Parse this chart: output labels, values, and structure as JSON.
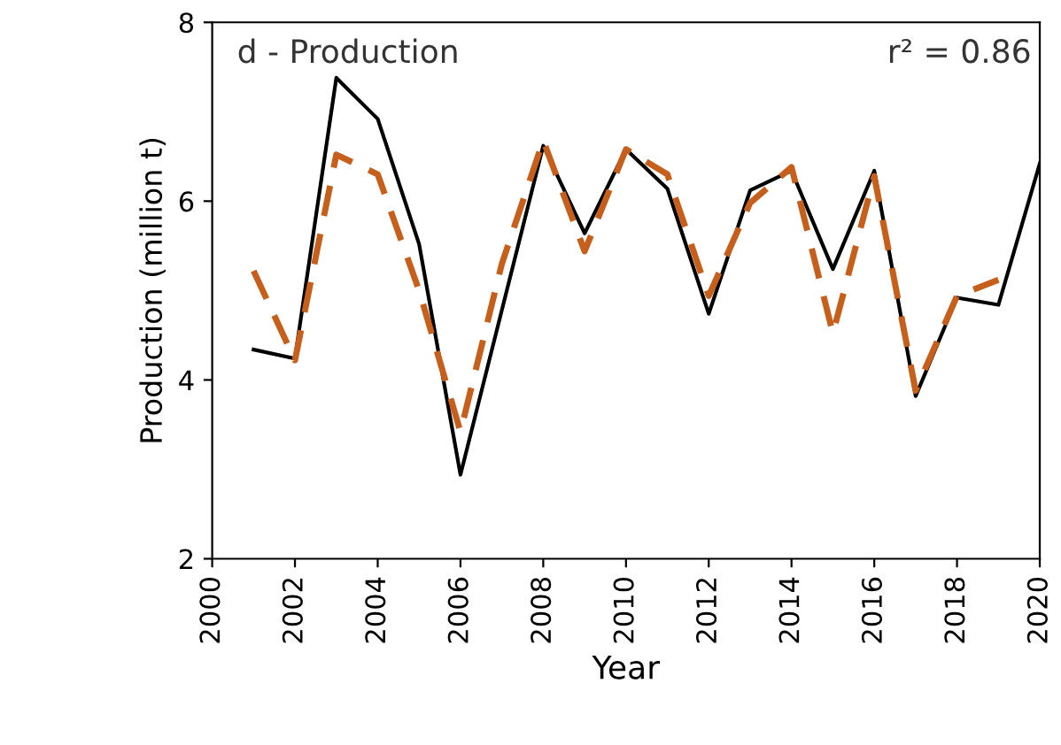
{
  "chart_data": {
    "type": "line",
    "title": "d - Production",
    "xlabel": "Year",
    "ylabel": "Production (million t)",
    "annotations": [
      "r² = 0.86"
    ],
    "xlim": [
      2000,
      2020
    ],
    "xticks": [
      2000,
      2002,
      2004,
      2006,
      2008,
      2010,
      2012,
      2014,
      2016,
      2018,
      2020
    ],
    "ylim": [
      2,
      8
    ],
    "yticks": [
      2,
      4,
      6,
      8
    ],
    "grid": false,
    "legend": false,
    "series": [
      {
        "color": "#000000",
        "line_style": "solid",
        "x": [
          2001,
          2002,
          2003,
          2004,
          2005,
          2006,
          2007,
          2008,
          2009,
          2010,
          2011,
          2012,
          2013,
          2014,
          2015,
          2016,
          2017,
          2018,
          2019,
          2020
        ],
        "values": [
          4.34,
          4.24,
          7.38,
          6.92,
          5.52,
          2.94,
          4.78,
          6.62,
          5.64,
          6.58,
          6.14,
          4.74,
          6.12,
          6.34,
          5.24,
          6.34,
          3.82,
          4.92,
          4.84,
          6.42
        ]
      },
      {
        "color": "#c65f1c",
        "line_style": "dashed",
        "x": [
          2001,
          2002,
          2003,
          2004,
          2005,
          2006,
          2007,
          2008,
          2009,
          2010,
          2011,
          2012,
          2013,
          2014,
          2015,
          2016,
          2017,
          2018,
          2019
        ],
        "values": [
          5.22,
          4.22,
          6.52,
          6.3,
          5.0,
          3.42,
          5.3,
          6.68,
          5.44,
          6.58,
          6.3,
          4.94,
          5.98,
          6.38,
          4.52,
          6.28,
          3.88,
          4.94,
          5.12
        ]
      }
    ]
  }
}
